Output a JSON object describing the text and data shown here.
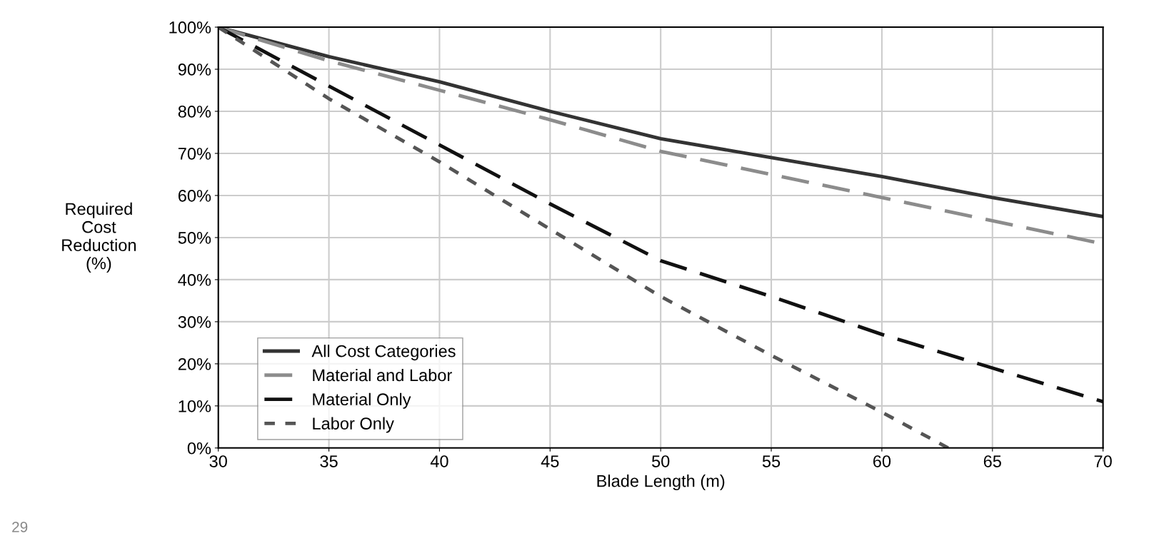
{
  "chart_data": {
    "type": "line",
    "xlabel": "Blade Length (m)",
    "ylabel": "Required\nCost\nReduction\n(%)",
    "x": [
      30,
      35,
      40,
      45,
      50,
      55,
      60,
      65,
      70
    ],
    "series": [
      {
        "name": "All Cost Categories",
        "color": "#333333",
        "line_style": "solid",
        "values": [
          100,
          93,
          87,
          80,
          73.5,
          69,
          64.5,
          59.5,
          55
        ]
      },
      {
        "name": "Material and Labor",
        "color": "#8c8c8c",
        "line_style": "dashed",
        "values": [
          100,
          92,
          85,
          78,
          70.5,
          65,
          59.5,
          54,
          48.5
        ]
      },
      {
        "name": "Material Only",
        "color": "#111111",
        "line_style": "dashed",
        "values": [
          100,
          86,
          72,
          58,
          44.5,
          36,
          27,
          19,
          11
        ]
      },
      {
        "name": "Labor Only",
        "color": "#555555",
        "line_style": "dotted",
        "x": [
          30,
          35,
          40,
          45,
          50,
          55,
          60,
          63
        ],
        "values": [
          100,
          83,
          68,
          52,
          36,
          22,
          8.5,
          0
        ]
      }
    ],
    "xlim": [
      30,
      70
    ],
    "xticks": [
      30,
      35,
      40,
      45,
      50,
      55,
      60,
      65,
      70
    ],
    "ylim": [
      0,
      100
    ],
    "yticks": [
      {
        "value": 0,
        "label": "0%"
      },
      {
        "value": 10,
        "label": "10%"
      },
      {
        "value": 20,
        "label": "20%"
      },
      {
        "value": 30,
        "label": "30%"
      },
      {
        "value": 40,
        "label": "40%"
      },
      {
        "value": 50,
        "label": "50%"
      },
      {
        "value": 60,
        "label": "60%"
      },
      {
        "value": 70,
        "label": "70%"
      },
      {
        "value": 80,
        "label": "80%"
      },
      {
        "value": 90,
        "label": "90%"
      },
      {
        "value": 100,
        "label": "100%"
      }
    ],
    "grid": true,
    "legend": "bottom left",
    "marker": "none",
    "annotations": [
      "29"
    ]
  }
}
